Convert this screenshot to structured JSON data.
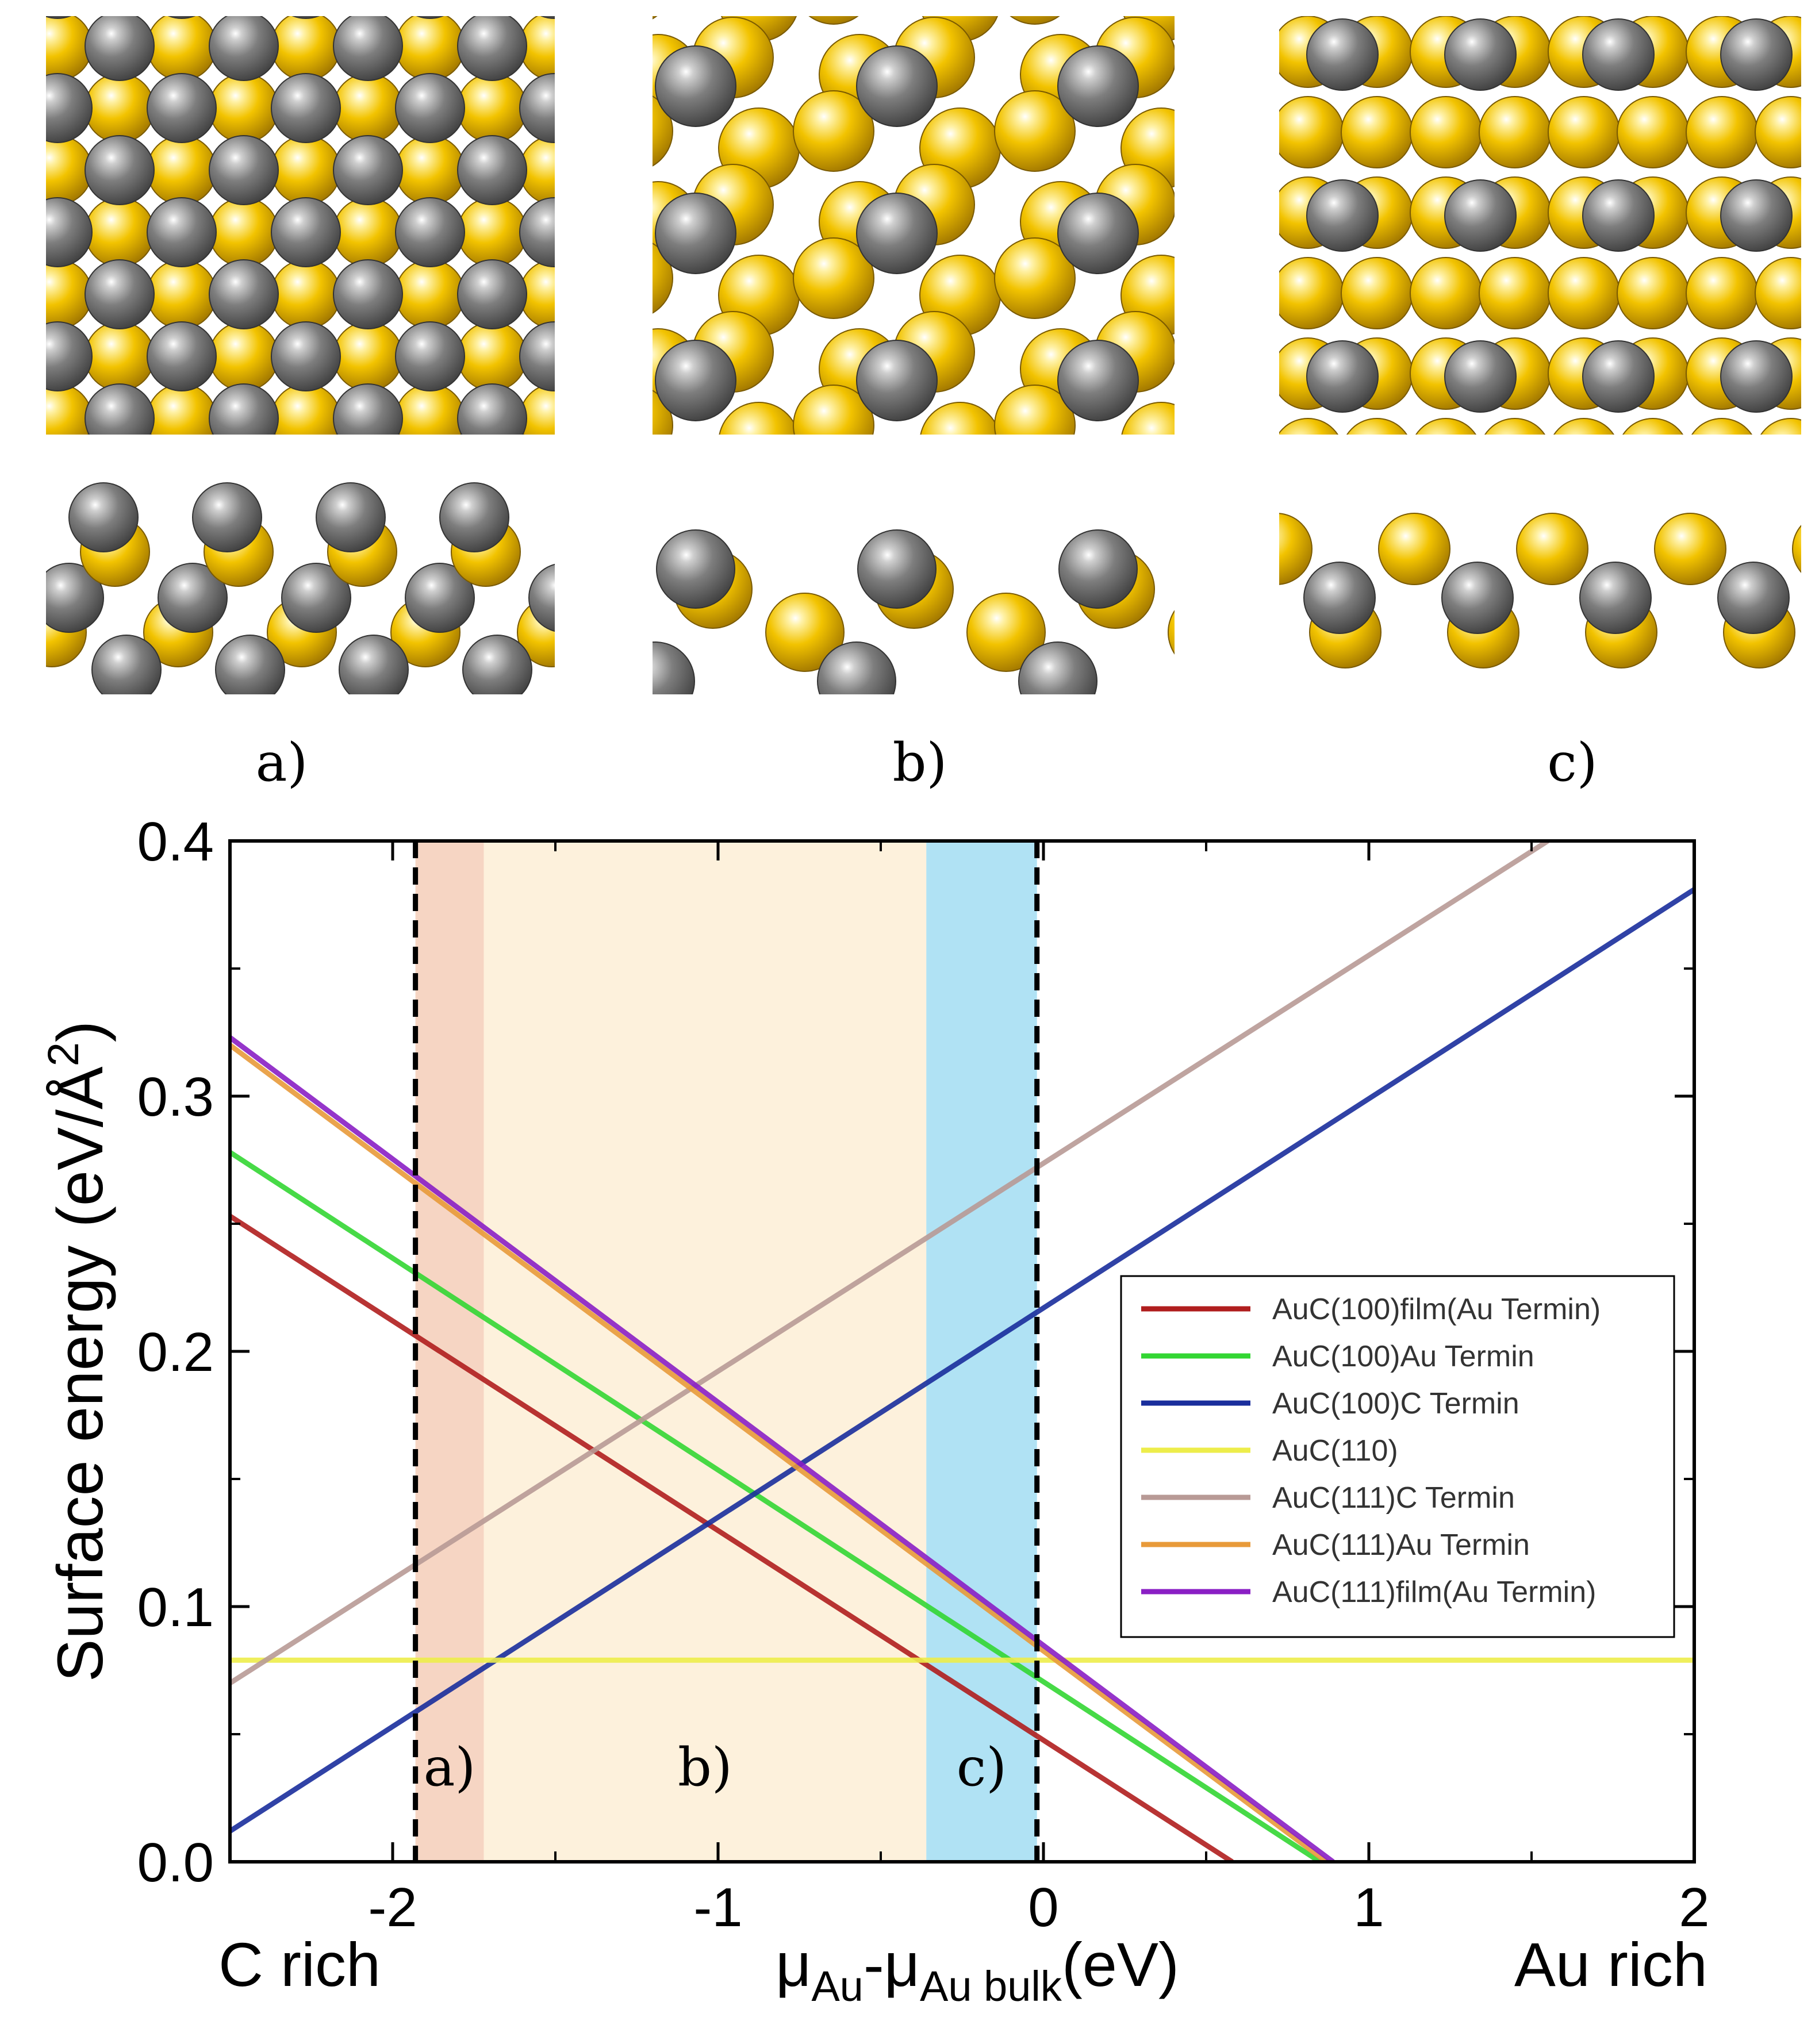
{
  "panels": [
    {
      "label": "a)",
      "name": "panel-a"
    },
    {
      "label": "b)",
      "name": "panel-b"
    },
    {
      "label": "c)",
      "name": "panel-c"
    }
  ],
  "colors": {
    "gold_atom": "#e8b800",
    "carbon_atom": "#7c7c7c"
  },
  "chart_data": {
    "type": "line",
    "xlabel_mu": "μ",
    "xlabel_sub1": "Au",
    "xlabel_sep": "-μ",
    "xlabel_sub2": "Au bulk",
    "xlabel_unit": "(eV)",
    "ylabel_main": "Surface energy (eV/Å",
    "ylabel_sup": "2",
    "ylabel_close": ")",
    "x_left_label": "C rich",
    "x_right_label": "Au rich",
    "xlim": [
      -2.5,
      2
    ],
    "ylim": [
      0,
      0.4
    ],
    "xticks": [
      -2,
      -1,
      0,
      1,
      2
    ],
    "xtick_labels": [
      "-2",
      "-1",
      "0",
      "1",
      "2"
    ],
    "yticks": [
      0,
      0.1,
      0.2,
      0.3,
      0.4
    ],
    "ytick_labels": [
      "0.0",
      "0.1",
      "0.2",
      "0.3",
      "0.4"
    ],
    "regions": [
      {
        "label": "a)",
        "x0": -1.93,
        "x1": -1.72,
        "color": "#f6d5c3"
      },
      {
        "label": "b)",
        "x0": -1.72,
        "x1": -0.36,
        "color": "#fdf1dc"
      },
      {
        "label": "c)",
        "x0": -0.36,
        "x1": -0.02,
        "color": "#b0e2f4"
      }
    ],
    "dashed_lines": [
      -1.93,
      -0.02
    ],
    "series": [
      {
        "name": "AuC(100)film(Au Termin)",
        "color": "#b01e1e",
        "x": [
          -2.5,
          0.58
        ],
        "y": [
          0.253,
          0.0
        ]
      },
      {
        "name": "AuC(100)Au Termin",
        "color": "#33d633",
        "x": [
          -2.5,
          0.85
        ],
        "y": [
          0.278,
          0.0
        ]
      },
      {
        "name": "AuC(100)C Termin",
        "color": "#1a2e9c",
        "x": [
          -2.5,
          2.0
        ],
        "y": [
          0.012,
          0.381
        ]
      },
      {
        "name": "AuC(110)",
        "color": "#eded4a",
        "x": [
          -2.5,
          2.0
        ],
        "y": [
          0.079,
          0.079
        ]
      },
      {
        "name": "AuC(111)C Termin",
        "color": "#b89a96",
        "x": [
          -2.5,
          1.55
        ],
        "y": [
          0.07,
          0.4
        ]
      },
      {
        "name": "AuC(111)Au Termin",
        "color": "#e89a3a",
        "x": [
          -2.5,
          0.87
        ],
        "y": [
          0.32,
          0.0
        ]
      },
      {
        "name": "AuC(111)film(Au Termin)",
        "color": "#8a1fc4",
        "x": [
          -2.5,
          0.89
        ],
        "y": [
          0.323,
          0.0
        ]
      }
    ]
  }
}
